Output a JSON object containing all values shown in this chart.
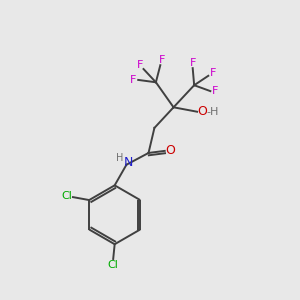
{
  "bg_color": "#e8e8e8",
  "bond_color": "#404040",
  "N_color": "#2020cc",
  "O_color": "#cc0000",
  "F_color": "#cc00cc",
  "Cl_color": "#00aa00",
  "H_color": "#707070",
  "font_size": 9,
  "small_font": 8,
  "fig_size": [
    3.0,
    3.0
  ],
  "dpi": 100,
  "xlim": [
    0,
    10
  ],
  "ylim": [
    0,
    10
  ]
}
